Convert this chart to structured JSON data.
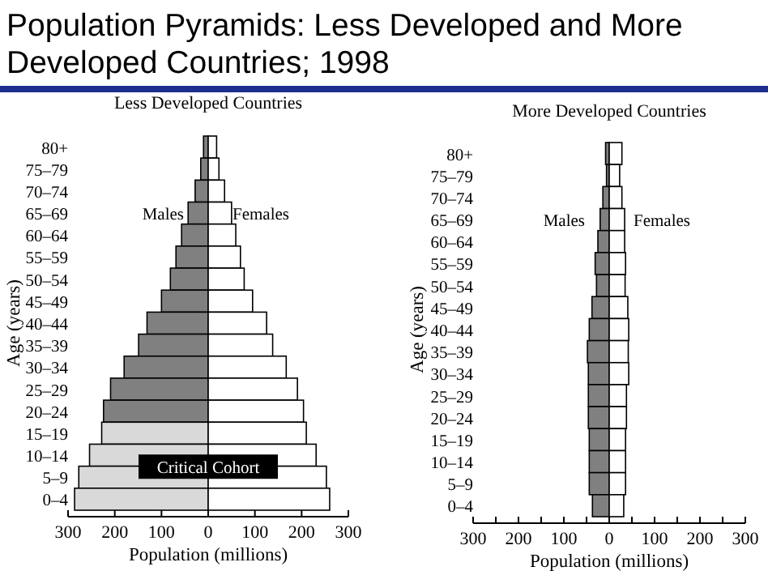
{
  "chart_data": [
    {
      "type": "bar",
      "orientation": "horizontal",
      "stacked": true,
      "title": "Population Pyramids: Less Developed and More Developed Countries; 1998",
      "subtitle": "Less Developed Countries",
      "xlabel": "Population (millions)",
      "ylabel": "Age (years)",
      "categories": [
        "80+",
        "75–79",
        "70–74",
        "65–69",
        "60–64",
        "55–59",
        "50–54",
        "45–49",
        "40–44",
        "35–39",
        "30–34",
        "25–29",
        "20–24",
        "15–19",
        "10–14",
        "5–9",
        "0–4"
      ],
      "series": [
        {
          "colors": [
            "#808080",
            "#808080",
            "#808080",
            "#808080",
            "#808080",
            "#808080",
            "#808080",
            "#808080",
            "#808080",
            "#808080",
            "#808080",
            "#808080",
            "#808080",
            "#d9d9d9",
            "#d9d9d9",
            "#d9d9d9",
            "#d9d9d9"
          ],
          "values": [
            -10,
            -16,
            -28,
            -43,
            -57,
            -69,
            -81,
            -100,
            -131,
            -149,
            -180,
            -209,
            -224,
            -228,
            -254,
            -277,
            -286
          ]
        },
        {
          "color": "#ffffff",
          "values": [
            18,
            23,
            35,
            50,
            59,
            69,
            77,
            95,
            125,
            138,
            167,
            191,
            204,
            210,
            231,
            253,
            260
          ]
        }
      ],
      "xlim": [
        -300,
        300
      ],
      "xticks": [
        {
          "value": -300,
          "label": "300"
        },
        {
          "value": -200,
          "label": "200"
        },
        {
          "value": -100,
          "label": "100"
        },
        0,
        100,
        200,
        300
      ],
      "annotations": [
        "Males",
        "Females",
        "Critical Cohort"
      ]
    },
    {
      "type": "bar",
      "orientation": "horizontal",
      "stacked": true,
      "title": "More Developed Countries",
      "xlabel": "Population (millions)",
      "ylabel": "Age (years)",
      "categories": [
        "80+",
        "75–79",
        "70–74",
        "65–69",
        "60–64",
        "55–59",
        "50–54",
        "45–49",
        "40–44",
        "35–39",
        "30–34",
        "25–29",
        "20–24",
        "15–19",
        "10–14",
        "5–9",
        "0–4"
      ],
      "series": [
        {
          "color": "#808080",
          "values": [
            -8,
            -6,
            -14,
            -20,
            -25,
            -31,
            -28,
            -38,
            -44,
            -48,
            -46,
            -46,
            -46,
            -44,
            -44,
            -44,
            -37
          ]
        },
        {
          "color": "#ffffff",
          "values": [
            28,
            23,
            28,
            34,
            34,
            36,
            35,
            41,
            43,
            42,
            43,
            38,
            38,
            36,
            36,
            36,
            32
          ]
        }
      ],
      "xlim": [
        -300,
        300
      ],
      "xticks": [
        {
          "value": -300,
          "label": "300"
        },
        {
          "value": -250,
          "label": null
        },
        {
          "value": -200,
          "label": "200"
        },
        {
          "value": -150,
          "label": null
        },
        {
          "value": -100,
          "label": "100"
        },
        {
          "value": -50,
          "label": null
        },
        0,
        {
          "value": 50,
          "label": null
        },
        100,
        {
          "value": 150,
          "label": null
        },
        200,
        {
          "value": 250,
          "label": null
        },
        300
      ],
      "annotations": [
        "Males",
        "Females"
      ]
    }
  ]
}
